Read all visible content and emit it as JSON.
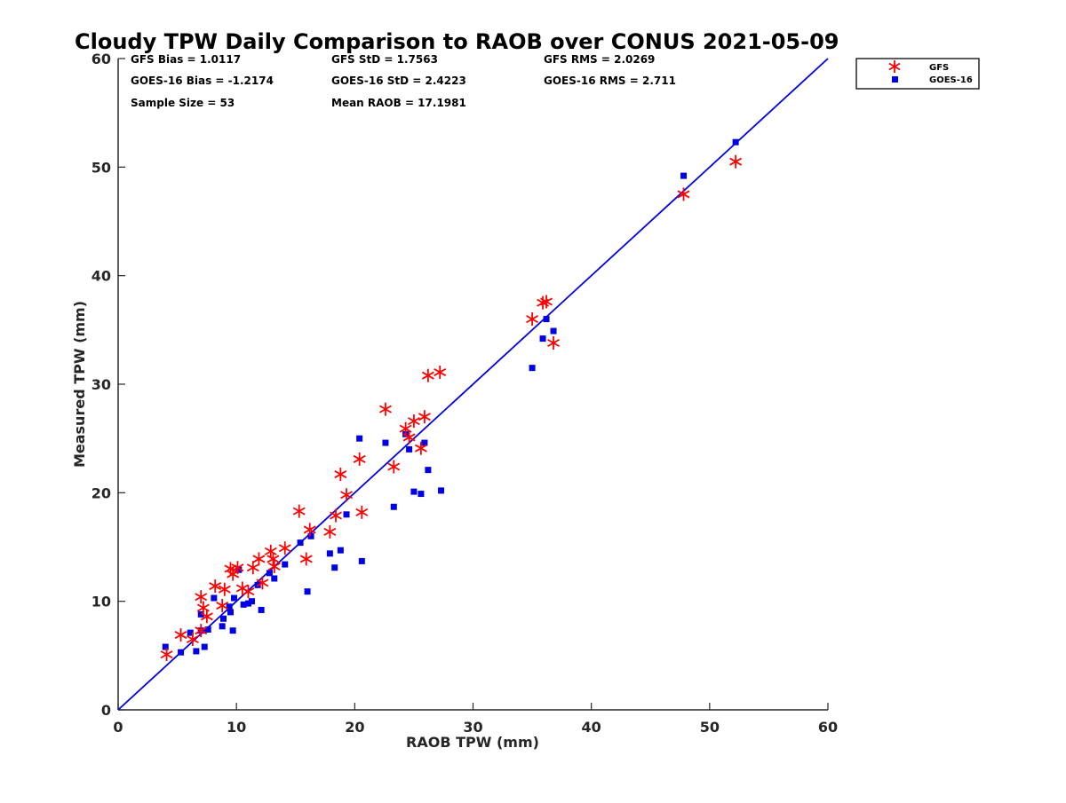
{
  "chart_data": {
    "type": "scatter",
    "title": "Cloudy TPW Daily Comparison to RAOB over CONUS 2021-05-09",
    "xlabel": "RAOB TPW (mm)",
    "ylabel": "Measured TPW (mm)",
    "xlim": [
      0,
      60
    ],
    "ylim": [
      0,
      60
    ],
    "xticks": [
      "0",
      "10",
      "20",
      "30",
      "40",
      "50",
      "60"
    ],
    "yticks": [
      "0",
      "10",
      "20",
      "30",
      "40",
      "50",
      "60"
    ],
    "grid": false,
    "legend_position": "top-right",
    "reference_line": {
      "from": [
        0,
        0
      ],
      "to": [
        60,
        60
      ],
      "color": "#0000e6"
    },
    "stats": [
      {
        "id": "gfs-bias",
        "text": "GFS Bias = 1.0117"
      },
      {
        "id": "gfs-std",
        "text": "GFS StD = 1.7563"
      },
      {
        "id": "gfs-rms",
        "text": "GFS RMS = 2.0269"
      },
      {
        "id": "goes-bias",
        "text": "GOES-16 Bias = -1.2174"
      },
      {
        "id": "goes-std",
        "text": "GOES-16 StD = 2.4223"
      },
      {
        "id": "goes-rms",
        "text": "GOES-16 RMS = 2.711"
      },
      {
        "id": "sample-size",
        "text": "Sample Size = 53"
      },
      {
        "id": "mean-raob",
        "text": "Mean RAOB = 17.1981"
      }
    ],
    "series": [
      {
        "name": "GFS",
        "marker": "asterisk",
        "color": "#ff0000",
        "points": [
          [
            4.1,
            5.1
          ],
          [
            5.3,
            6.9
          ],
          [
            6.3,
            6.5
          ],
          [
            7.0,
            7.3
          ],
          [
            7.0,
            10.4
          ],
          [
            7.2,
            9.4
          ],
          [
            7.5,
            8.6
          ],
          [
            8.2,
            11.4
          ],
          [
            8.8,
            9.6
          ],
          [
            9.0,
            11.1
          ],
          [
            9.5,
            13.0
          ],
          [
            9.7,
            12.5
          ],
          [
            10.1,
            13.1
          ],
          [
            10.5,
            11.2
          ],
          [
            11.0,
            10.9
          ],
          [
            11.4,
            13.1
          ],
          [
            11.9,
            13.9
          ],
          [
            12.2,
            11.7
          ],
          [
            12.9,
            14.6
          ],
          [
            13.1,
            13.9
          ],
          [
            13.2,
            13.2
          ],
          [
            14.1,
            14.9
          ],
          [
            15.3,
            18.3
          ],
          [
            15.9,
            13.9
          ],
          [
            16.2,
            16.6
          ],
          [
            17.9,
            16.4
          ],
          [
            18.4,
            17.9
          ],
          [
            18.8,
            21.7
          ],
          [
            19.3,
            19.8
          ],
          [
            20.4,
            23.1
          ],
          [
            20.6,
            18.2
          ],
          [
            22.6,
            27.7
          ],
          [
            23.3,
            22.4
          ],
          [
            24.3,
            25.9
          ],
          [
            24.6,
            25.1
          ],
          [
            25.0,
            26.6
          ],
          [
            25.6,
            24.1
          ],
          [
            25.9,
            27.0
          ],
          [
            26.2,
            30.8
          ],
          [
            27.2,
            31.1
          ],
          [
            35.0,
            36.0
          ],
          [
            35.9,
            37.5
          ],
          [
            36.2,
            37.6
          ],
          [
            36.8,
            33.8
          ],
          [
            47.8,
            47.5
          ],
          [
            52.2,
            50.5
          ]
        ]
      },
      {
        "name": "GOES-16",
        "marker": "square",
        "color": "#0000e6",
        "points": [
          [
            4.0,
            5.8
          ],
          [
            5.3,
            5.3
          ],
          [
            6.1,
            7.1
          ],
          [
            6.6,
            5.4
          ],
          [
            7.0,
            7.3
          ],
          [
            7.0,
            8.8
          ],
          [
            7.3,
            5.8
          ],
          [
            7.6,
            7.4
          ],
          [
            8.1,
            10.3
          ],
          [
            8.8,
            7.7
          ],
          [
            8.9,
            8.4
          ],
          [
            9.4,
            9.5
          ],
          [
            9.5,
            9.0
          ],
          [
            9.7,
            7.3
          ],
          [
            9.8,
            10.3
          ],
          [
            10.2,
            12.9
          ],
          [
            10.6,
            9.7
          ],
          [
            11.0,
            9.8
          ],
          [
            11.3,
            10.0
          ],
          [
            11.8,
            11.5
          ],
          [
            12.1,
            9.2
          ],
          [
            12.8,
            12.6
          ],
          [
            13.2,
            12.1
          ],
          [
            14.1,
            13.4
          ],
          [
            15.4,
            15.4
          ],
          [
            16.0,
            10.9
          ],
          [
            16.3,
            16.0
          ],
          [
            17.9,
            14.4
          ],
          [
            18.3,
            13.1
          ],
          [
            18.8,
            14.7
          ],
          [
            19.3,
            18.0
          ],
          [
            20.4,
            25.0
          ],
          [
            20.6,
            13.7
          ],
          [
            22.6,
            24.6
          ],
          [
            23.3,
            18.7
          ],
          [
            24.3,
            25.4
          ],
          [
            24.6,
            24.0
          ],
          [
            25.0,
            20.1
          ],
          [
            25.6,
            19.9
          ],
          [
            25.9,
            24.6
          ],
          [
            26.2,
            22.1
          ],
          [
            27.3,
            20.2
          ],
          [
            35.0,
            31.5
          ],
          [
            35.9,
            34.2
          ],
          [
            36.2,
            36.0
          ],
          [
            36.8,
            34.9
          ],
          [
            47.8,
            49.2
          ],
          [
            52.2,
            52.3
          ]
        ]
      }
    ]
  }
}
